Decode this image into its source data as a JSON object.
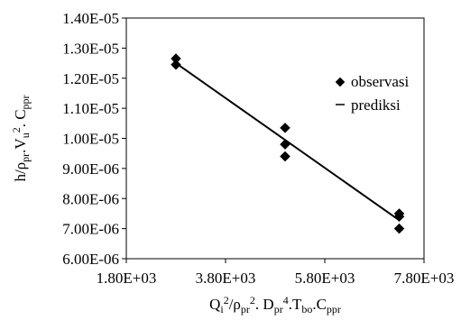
{
  "chart_data": {
    "type": "scatter",
    "title": "",
    "xlabel": {
      "parts": [
        {
          "t": "Q",
          "s": "n"
        },
        {
          "t": "i",
          "s": "sub"
        },
        {
          "t": "2",
          "s": "sup"
        },
        {
          "t": "/ρ",
          "s": "n"
        },
        {
          "t": "pr",
          "s": "sub"
        },
        {
          "t": "2",
          "s": "sup"
        },
        {
          "t": ". D",
          "s": "n"
        },
        {
          "t": "pr",
          "s": "sub"
        },
        {
          "t": "4",
          "s": "sup"
        },
        {
          "t": ".T",
          "s": "n"
        },
        {
          "t": "bo",
          "s": "sub"
        },
        {
          "t": ".C",
          "s": "n"
        },
        {
          "t": "ppr",
          "s": "sub"
        }
      ]
    },
    "ylabel": {
      "parts": [
        {
          "t": "h/ρ",
          "s": "n"
        },
        {
          "t": "pr",
          "s": "sub"
        },
        {
          "t": ".V",
          "s": "n"
        },
        {
          "t": "u",
          "s": "sub"
        },
        {
          "t": "2",
          "s": "sup"
        },
        {
          "t": ". C",
          "s": "n"
        },
        {
          "t": "ppr",
          "s": "sub"
        }
      ]
    },
    "xlim": [
      1800,
      7800
    ],
    "ylim": [
      6e-06,
      1.4e-05
    ],
    "x_ticks": [
      1800,
      3800,
      5800,
      7800
    ],
    "x_tick_labels": [
      "1.80E+03",
      "3.80E+03",
      "5.80E+03",
      "7.80E+03"
    ],
    "y_ticks": [
      6e-06,
      7e-06,
      8e-06,
      9e-06,
      1e-05,
      1.1e-05,
      1.2e-05,
      1.3e-05,
      1.4e-05
    ],
    "y_tick_labels": [
      "6.00E-06",
      "7.00E-06",
      "8.00E-06",
      "9.00E-06",
      "1.00E-05",
      "1.10E-05",
      "1.20E-05",
      "1.30E-05",
      "1.40E-05"
    ],
    "grid": false,
    "legend": {
      "placement": "right",
      "entries": [
        "observasi",
        "prediksi"
      ]
    },
    "series": [
      {
        "name": "observasi",
        "marker": "diamond",
        "color": "#000000",
        "points": [
          {
            "x": 2800,
            "y": 1.265e-05
          },
          {
            "x": 2800,
            "y": 1.245e-05
          },
          {
            "x": 5000,
            "y": 1.035e-05
          },
          {
            "x": 5000,
            "y": 9.8e-06
          },
          {
            "x": 5000,
            "y": 9.4e-06
          },
          {
            "x": 7300,
            "y": 7.5e-06
          },
          {
            "x": 7300,
            "y": 7.4e-06
          },
          {
            "x": 7300,
            "y": 7e-06
          }
        ]
      },
      {
        "name": "prediksi",
        "line": true,
        "color": "#000000",
        "points": [
          {
            "x": 2800,
            "y": 1.25e-05
          },
          {
            "x": 7300,
            "y": 7.28e-06
          }
        ]
      }
    ]
  }
}
